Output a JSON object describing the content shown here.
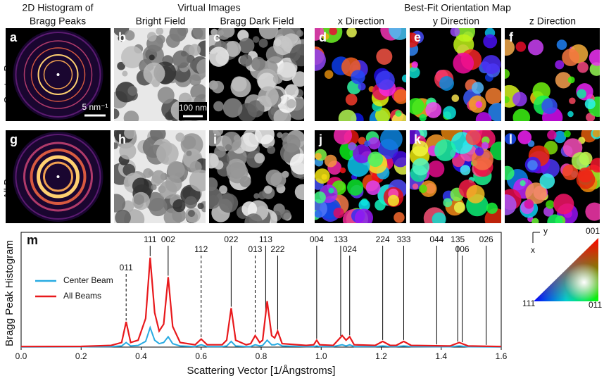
{
  "headers": {
    "histogram": [
      "2D Histogram of",
      "Bragg Peaks"
    ],
    "virtual": "Virtual Images",
    "bright": "Bright Field",
    "dark": "Bragg Dark Field",
    "orientation": "Best-Fit Orientation Map",
    "xdir": "x Direction",
    "ydir": "y Direction",
    "zdir": "z Direction"
  },
  "rows": [
    "Center Beam",
    "All Beams"
  ],
  "panel_letters": [
    "a",
    "b",
    "c",
    "d",
    "e",
    "f",
    "g",
    "h",
    "i",
    "j",
    "k",
    "l"
  ],
  "scale_bars": [
    "5 nm⁻¹",
    "100 nm"
  ],
  "color_key": {
    "top": "001",
    "left": "111",
    "right": "011",
    "x": "x",
    "y": "y"
  },
  "chart_data": {
    "type": "line",
    "panel_letter": "m",
    "xlabel": "Scattering Vector [1/Ångstroms]",
    "ylabel": "Bragg Peak Histogram",
    "xlim": [
      0,
      1.6
    ],
    "xticks": [
      {
        "value": 0,
        "label": "0.0"
      },
      0.2,
      0.4,
      0.6,
      0.8,
      {
        "value": 1,
        "label": "1.0"
      },
      1.2,
      1.4,
      1.6
    ],
    "ylim": [
      0,
      100
    ],
    "legend": "upper-left",
    "x": [
      0,
      0.2,
      0.3,
      0.335,
      0.35,
      0.365,
      0.39,
      0.415,
      0.43,
      0.445,
      0.46,
      0.475,
      0.49,
      0.505,
      0.53,
      0.58,
      0.6,
      0.62,
      0.67,
      0.685,
      0.7,
      0.715,
      0.75,
      0.765,
      0.78,
      0.795,
      0.805,
      0.82,
      0.835,
      0.845,
      0.855,
      0.87,
      0.95,
      0.975,
      0.985,
      0.995,
      1.04,
      1.07,
      1.083,
      1.095,
      1.11,
      1.18,
      1.205,
      1.23,
      1.25,
      1.275,
      1.3,
      1.43,
      1.46,
      1.49,
      1.6
    ],
    "series": [
      {
        "name": "Center Beam",
        "color": "#29abe2",
        "values": [
          0.2,
          0.3,
          0.5,
          1,
          4,
          1,
          1.5,
          5,
          17,
          6,
          3,
          4,
          9,
          3,
          1,
          0.5,
          2,
          0.5,
          0.5,
          1,
          5,
          1,
          0.5,
          0.5,
          2,
          1,
          1.5,
          6,
          2,
          2,
          3,
          1,
          0.5,
          0.5,
          1,
          0.5,
          0.5,
          2,
          1,
          2,
          0.5,
          0.5,
          1,
          0.5,
          0.5,
          1,
          0.5,
          0.3,
          1,
          0.3,
          0.2
        ]
      },
      {
        "name": "All Beams",
        "color": "#e8191c",
        "values": [
          0.5,
          0.6,
          1.5,
          4,
          22,
          4,
          6,
          25,
          78,
          30,
          14,
          20,
          61,
          18,
          4,
          2,
          7,
          2,
          2,
          6,
          34,
          6,
          2,
          3,
          10,
          4,
          6,
          40,
          10,
          8,
          14,
          3,
          1.5,
          2,
          6,
          2,
          1.5,
          10,
          6,
          9,
          2,
          1.5,
          5,
          1.5,
          1.5,
          5,
          1.5,
          1,
          4,
          1,
          0.5
        ]
      }
    ],
    "peaks": [
      {
        "label": "011",
        "x": 0.35,
        "dashed": true
      },
      {
        "label": "111",
        "x": 0.43,
        "dashed": false
      },
      {
        "label": "002",
        "x": 0.49,
        "dashed": false
      },
      {
        "label": "112",
        "x": 0.6,
        "dashed": true
      },
      {
        "label": "022",
        "x": 0.7,
        "dashed": false
      },
      {
        "label": "013",
        "x": 0.78,
        "dashed": true
      },
      {
        "label": "113",
        "x": 0.815,
        "dashed": false
      },
      {
        "label": "222",
        "x": 0.855,
        "dashed": false
      },
      {
        "label": "004",
        "x": 0.985,
        "dashed": false
      },
      {
        "label": "133",
        "x": 1.065,
        "dashed": false
      },
      {
        "label": "024",
        "x": 1.095,
        "dashed": false
      },
      {
        "label": "224",
        "x": 1.205,
        "dashed": false
      },
      {
        "label": "333",
        "x": 1.275,
        "dashed": false
      },
      {
        "label": "044",
        "x": 1.385,
        "dashed": false
      },
      {
        "label": "135",
        "x": 1.455,
        "dashed": false
      },
      {
        "label": "006",
        "x": 1.47,
        "dashed": false
      },
      {
        "label": "026",
        "x": 1.55,
        "dashed": false
      }
    ]
  }
}
